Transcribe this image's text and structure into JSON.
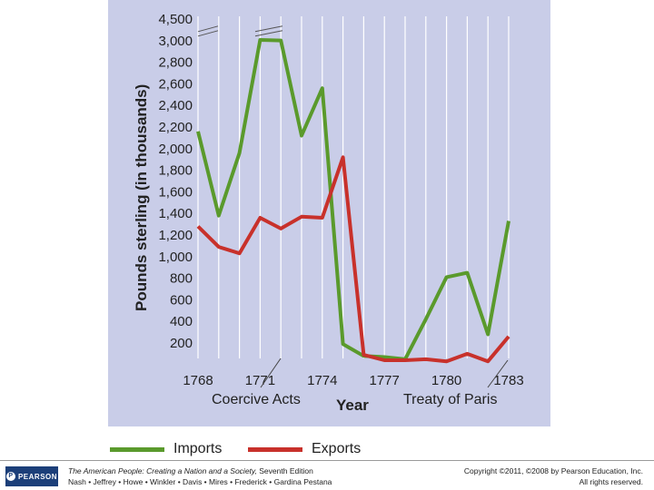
{
  "chart_data": {
    "type": "line",
    "x": [
      1768,
      1769,
      1770,
      1771,
      1772,
      1773,
      1774,
      1775,
      1776,
      1777,
      1778,
      1779,
      1780,
      1781,
      1782,
      1783
    ],
    "series": [
      {
        "name": "Imports",
        "color": "#5a9a2c",
        "values": [
          2160,
          1380,
          1960,
          3050,
          3010,
          2120,
          2560,
          190,
          80,
          70,
          50,
          420,
          810,
          850,
          280,
          1330
        ]
      },
      {
        "name": "Exports",
        "color": "#c8312b",
        "values": [
          1280,
          1090,
          1030,
          1360,
          1260,
          1370,
          1360,
          1920,
          90,
          40,
          40,
          50,
          30,
          100,
          30,
          260
        ]
      }
    ],
    "y_ticks": [
      "4,500",
      "3,000",
      "2,800",
      "2,600",
      "2,400",
      "2,200",
      "2,000",
      "1,800",
      "1,600",
      "1,400",
      "1,200",
      "1,000",
      "800",
      "600",
      "400",
      "200"
    ],
    "x_ticks": [
      "1768",
      "1771",
      "1774",
      "1777",
      "1780",
      "1783"
    ],
    "ylabel": "Pounds sterling (in thousands)",
    "xlabel": "Year",
    "annotations": [
      "Coercive Acts",
      "Treaty of Paris"
    ],
    "axis_break": true,
    "ylim": [
      0,
      4500
    ],
    "grid": "vertical"
  },
  "legend": {
    "items": [
      {
        "label": "Imports",
        "color": "#5a9a2c"
      },
      {
        "label": "Exports",
        "color": "#c8312b"
      }
    ]
  },
  "footer": {
    "logo": "PEARSON",
    "book_title": "The American People: Creating a Nation and a Society,",
    "edition": " Seventh Edition",
    "authors": "Nash • Jeffrey • Howe • Winkler • Davis • Mires • Frederick • Gardina Pestana",
    "copyright": "Copyright ©2011, ©2008 by Pearson Education, Inc.",
    "rights": "All rights reserved."
  }
}
